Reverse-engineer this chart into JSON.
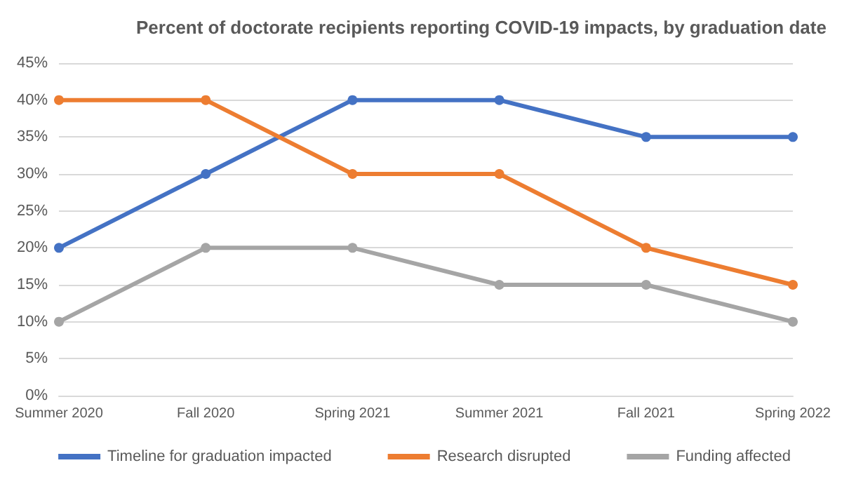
{
  "chart_data": {
    "type": "line",
    "title": "Percent of doctorate recipients reporting COVID-19 impacts, by graduation date",
    "categories": [
      "Summer 2020",
      "Fall 2020",
      "Spring 2021",
      "Summer 2021",
      "Fall 2021",
      "Spring 2022"
    ],
    "series": [
      {
        "name": "Timeline for graduation impacted",
        "color": "#4472c4",
        "values": [
          20,
          30,
          40,
          40,
          35,
          35
        ]
      },
      {
        "name": "Research disrupted",
        "color": "#ed7d31",
        "values": [
          40,
          40,
          30,
          30,
          20,
          15
        ]
      },
      {
        "name": "Funding affected",
        "color": "#a5a5a5",
        "values": [
          10,
          20,
          20,
          15,
          15,
          10
        ]
      }
    ],
    "ylim": [
      0,
      45
    ],
    "yticks": [
      {
        "value": 0,
        "label": "0%"
      },
      {
        "value": 5,
        "label": "5%"
      },
      {
        "value": 10,
        "label": "10%"
      },
      {
        "value": 15,
        "label": "15%"
      },
      {
        "value": 20,
        "label": "20%"
      },
      {
        "value": 25,
        "label": "25%"
      },
      {
        "value": 30,
        "label": "30%"
      },
      {
        "value": 35,
        "label": "35%"
      },
      {
        "value": 40,
        "label": "40%"
      },
      {
        "value": 45,
        "label": "45%"
      }
    ],
    "grid": "y",
    "legend": "bottom",
    "marker": "circle",
    "line_style": "solid"
  }
}
